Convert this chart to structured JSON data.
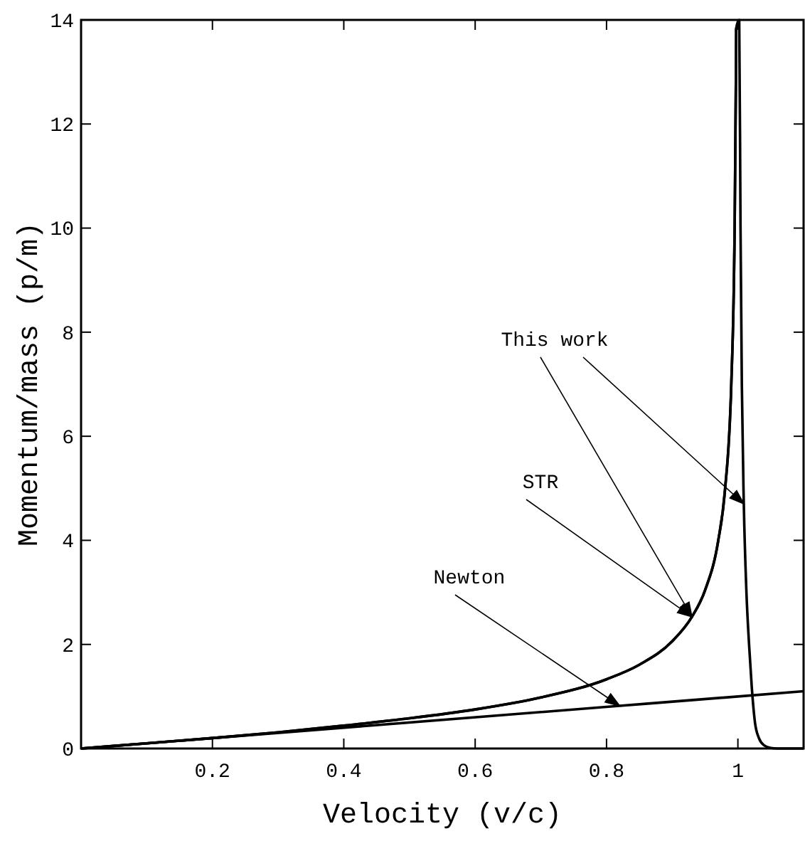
{
  "chart_data": {
    "type": "line",
    "xlabel": "Velocity (v/c)",
    "ylabel": "Momentum/mass (p/m)",
    "xlim": [
      0,
      1.1
    ],
    "ylim": [
      0,
      14
    ],
    "xticks": [
      0.2,
      0.4,
      0.6,
      0.8,
      1
    ],
    "yticks": [
      0,
      2,
      4,
      6,
      8,
      10,
      12,
      14
    ],
    "grid": false,
    "marker": "none",
    "line_style": "solid",
    "series": [
      {
        "color": "#000000",
        "x": [
          0,
          0.82,
          1.1
        ],
        "values": [
          0,
          0.82,
          1.1
        ]
      },
      {
        "color": "#000000",
        "x": [
          0,
          0.1,
          0.2,
          0.3,
          0.4,
          0.5,
          0.6,
          0.7,
          0.8,
          0.85,
          0.9,
          0.93,
          0.95,
          0.97,
          0.98,
          0.99,
          0.995,
          0.997,
          0.9974
        ],
        "values": [
          0,
          0.1,
          0.2,
          0.31,
          0.44,
          0.58,
          0.75,
          0.98,
          1.33,
          1.61,
          2.06,
          2.53,
          3.04,
          3.99,
          4.92,
          7.02,
          9.96,
          12.9,
          13.84
        ]
      },
      {
        "color": "#000000",
        "x": [
          0,
          0.1,
          0.2,
          0.3,
          0.4,
          0.5,
          0.6,
          0.7,
          0.8,
          0.85,
          0.9,
          0.93,
          0.95,
          0.97,
          0.98,
          0.99,
          0.995,
          0.997,
          0.9974,
          1.002,
          1.004,
          1.006,
          1.009,
          1.013,
          1.017,
          1.021,
          1.026,
          1.032,
          1.04,
          1.05,
          1.06,
          1.1
        ],
        "values": [
          0,
          0.1,
          0.2,
          0.31,
          0.44,
          0.58,
          0.75,
          0.98,
          1.33,
          1.61,
          2.06,
          2.53,
          3.04,
          3.99,
          4.92,
          7.02,
          9.96,
          12.9,
          13.84,
          14,
          10,
          7,
          4.7,
          3,
          2,
          1.2,
          0.5,
          0.2,
          0.06,
          0.01,
          0,
          0
        ]
      }
    ],
    "annotations": [
      {
        "text": "Newton",
        "x": 0.82,
        "y": 0.82
      },
      {
        "text": "STR",
        "x": 0.93,
        "y": 2.53
      },
      {
        "text": "This work",
        "x": 1.009,
        "y": 4.7
      }
    ]
  }
}
